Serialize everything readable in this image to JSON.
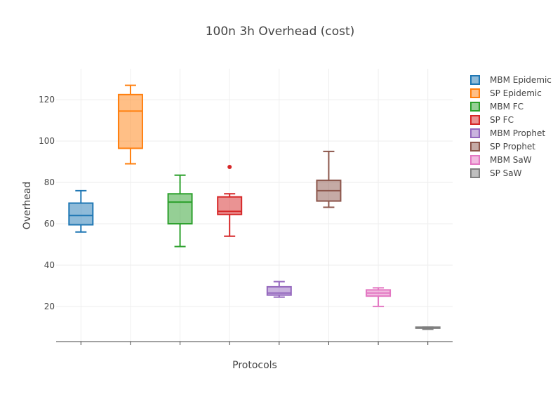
{
  "chart_data": {
    "type": "box",
    "title": "100n 3h Overhead (cost)",
    "xlabel": "Protocols",
    "ylabel": "Overhead",
    "ylim": [
      3,
      135
    ],
    "yticks": [
      20,
      40,
      60,
      80,
      100,
      120
    ],
    "grid": true,
    "legend_position": "right",
    "series": [
      {
        "name": "MBM Epidemic",
        "color": "#1f77b4",
        "min": 56,
        "q1": 59.5,
        "median": 64,
        "q3": 70,
        "max": 76,
        "outliers": []
      },
      {
        "name": "SP Epidemic",
        "color": "#ff7f0e",
        "min": 89,
        "q1": 96.5,
        "median": 114.5,
        "q3": 122.5,
        "max": 127,
        "outliers": []
      },
      {
        "name": "MBM FC",
        "color": "#2ca02c",
        "min": 49,
        "q1": 60,
        "median": 70.5,
        "q3": 74.5,
        "max": 83.5,
        "outliers": []
      },
      {
        "name": "SP FC",
        "color": "#d62728",
        "min": 54,
        "q1": 64.5,
        "median": 66,
        "q3": 73,
        "max": 74.5,
        "outliers": [
          87.5
        ]
      },
      {
        "name": "MBM Prophet",
        "color": "#9467bd",
        "min": 24.5,
        "q1": 25.5,
        "median": 26.5,
        "q3": 29.5,
        "max": 32,
        "outliers": []
      },
      {
        "name": "SP Prophet",
        "color": "#8c564b",
        "min": 68,
        "q1": 71,
        "median": 76,
        "q3": 81,
        "max": 95,
        "outliers": []
      },
      {
        "name": "MBM SaW",
        "color": "#e377c2",
        "min": 20,
        "q1": 25,
        "median": 26.5,
        "q3": 28,
        "max": 29,
        "outliers": []
      },
      {
        "name": "SP SaW",
        "color": "#7f7f7f",
        "min": 9,
        "q1": 9.5,
        "median": 9.8,
        "q3": 10,
        "max": 10,
        "outliers": []
      }
    ]
  }
}
